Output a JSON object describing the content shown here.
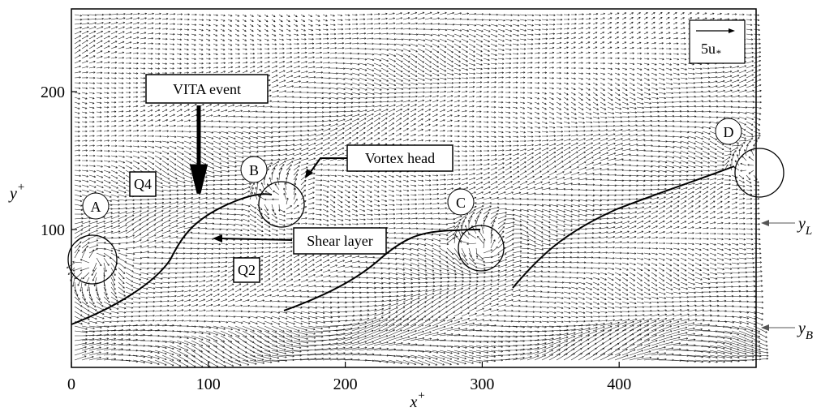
{
  "chart_data": {
    "type": "quiver",
    "x_label": {
      "text": "x",
      "sup": "+"
    },
    "y_label": {
      "text": "y",
      "sup": "+"
    },
    "xlim": [
      0,
      500
    ],
    "ylim": [
      0,
      260
    ],
    "xticks": [
      0,
      100,
      200,
      300,
      400
    ],
    "yticks": [
      100,
      200
    ],
    "annotations": {
      "vita": "VITA event",
      "vortex_head": "Vortex head",
      "shear_layer": "Shear layer",
      "q4": "Q4",
      "q2": "Q2",
      "a": "A",
      "b": "B",
      "c": "C",
      "d": "D",
      "scale": {
        "text": "5u",
        "sub": "*"
      },
      "y_l": {
        "text": "y",
        "sub": "L"
      },
      "y_b": {
        "text": "y",
        "sub": "B"
      }
    }
  }
}
